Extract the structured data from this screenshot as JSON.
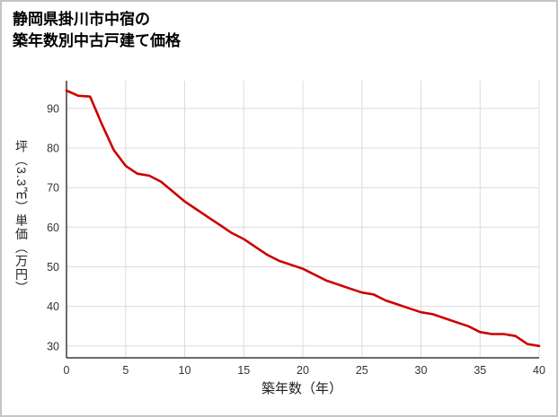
{
  "title": {
    "line1": "静岡県掛川市中宿の",
    "line2": "築年数別中古戸建て価格"
  },
  "chart_data": {
    "type": "line",
    "title": "静岡県掛川市中宿の築年数別中古戸建て価格",
    "xlabel": "築年数（年）",
    "ylabel": "坪（3.3㎡）単価（万円）",
    "x": [
      0,
      1,
      2,
      3,
      4,
      5,
      6,
      7,
      8,
      9,
      10,
      11,
      12,
      13,
      14,
      15,
      16,
      17,
      18,
      19,
      20,
      21,
      22,
      23,
      24,
      25,
      26,
      27,
      28,
      29,
      30,
      31,
      32,
      33,
      34,
      35,
      36,
      37,
      38,
      39,
      40
    ],
    "y": [
      94.5,
      93.2,
      93,
      86,
      79.5,
      75.5,
      73.5,
      73,
      71.5,
      69,
      66.5,
      64.5,
      62.5,
      60.5,
      58.5,
      57,
      55,
      53,
      51.5,
      50.5,
      49.5,
      48,
      46.5,
      45.5,
      44.5,
      43.5,
      43,
      41.5,
      40.5,
      39.5,
      38.5,
      38,
      37,
      36,
      35,
      33.5,
      33,
      33,
      32.5,
      30.5,
      30
    ],
    "xlim": [
      0,
      40
    ],
    "ylim": [
      27,
      97
    ],
    "xticks": [
      0,
      5,
      10,
      15,
      20,
      25,
      30,
      35,
      40
    ],
    "yticks": [
      30,
      40,
      50,
      60,
      70,
      80,
      90
    ],
    "grid": true,
    "legend": "none",
    "line_color": "#cc0000",
    "grid_color": "#dcdcdc",
    "axis_color": "#3a3a3a"
  }
}
